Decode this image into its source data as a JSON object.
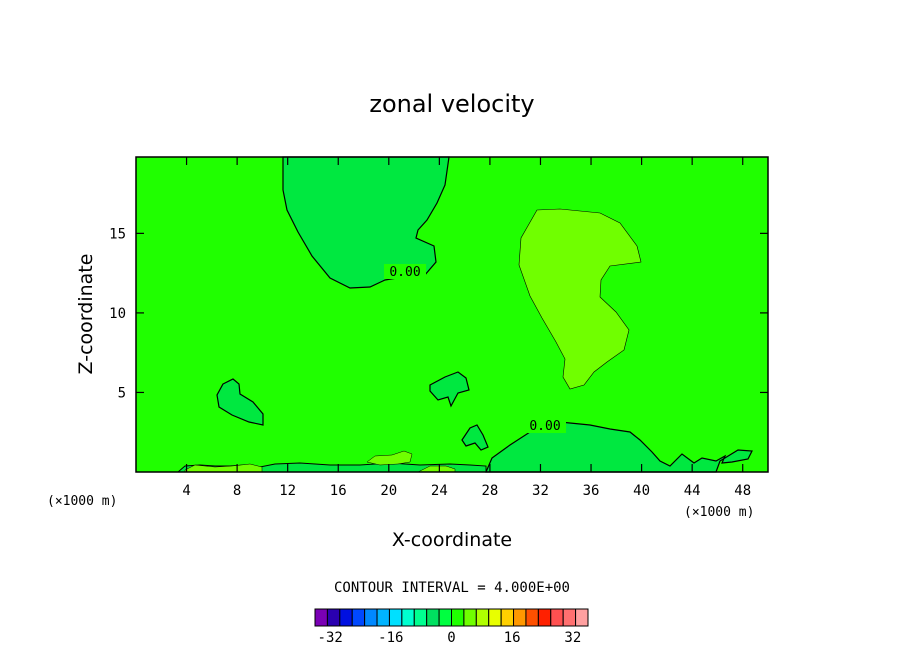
{
  "chart_data": {
    "type": "contour",
    "title": "zonal velocity",
    "xlabel": "X-coordinate",
    "ylabel": "Z-coordinate",
    "x_unit": "(×1000 m)",
    "y_unit": "(×1000 m)",
    "xlim": [
      0,
      50
    ],
    "ylim": [
      0,
      19.8
    ],
    "x_ticks": [
      4,
      8,
      12,
      16,
      20,
      24,
      28,
      32,
      36,
      40,
      44,
      48
    ],
    "y_ticks": [
      5,
      10,
      15
    ],
    "contour_interval_text": "CONTOUR INTERVAL = 4.000E+00",
    "contour_interval": 4.0,
    "contour_labels": [
      "0.00",
      "0.00"
    ],
    "background_value_range": [
      0,
      4
    ],
    "colorbar": {
      "tick_labels": [
        "-32",
        "-16",
        "0",
        "16",
        "32"
      ],
      "tick_values": [
        -32,
        -16,
        0,
        16,
        32
      ],
      "min": -36,
      "max": 36,
      "colors": [
        "#7a00b5",
        "#2a00b0",
        "#0010e0",
        "#0048ff",
        "#0088ff",
        "#00b4ff",
        "#00e0ff",
        "#00ffd0",
        "#00ff90",
        "#00e060",
        "#00ff40",
        "#20ff00",
        "#70ff00",
        "#b0ff00",
        "#e8ff00",
        "#ffd000",
        "#ff9800",
        "#ff5000",
        "#ff2000",
        "#ff5050",
        "#ff7070",
        "#ffa0a0"
      ]
    },
    "colors": {
      "background": "#20ff00",
      "negative_region": "#00e840",
      "positive_region": "#70ff00"
    }
  }
}
